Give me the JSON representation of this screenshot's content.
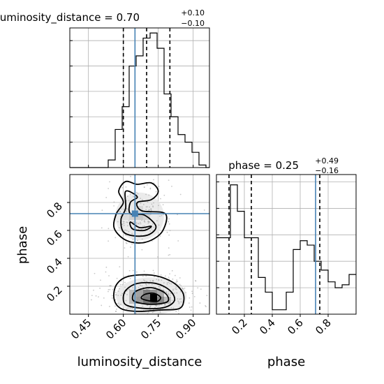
{
  "colors": {
    "hist": "#000000",
    "truth": "#4682b4",
    "grid": "#b0b0b0",
    "contour": "#000000",
    "points": "#9a9a9a"
  },
  "chart_data": [
    {
      "panel": "top-left",
      "type": "histogram",
      "title_base": "luminosity_distance = 0.70",
      "title_sup": "+0.10",
      "title_sub": "−0.10",
      "xlim": [
        0.37,
        0.97
      ],
      "x_ticks": [
        0.45,
        0.6,
        0.75,
        0.9
      ],
      "bin_edges": [
        0.37,
        0.385,
        0.4,
        0.415,
        0.43,
        0.445,
        0.46,
        0.475,
        0.49,
        0.505,
        0.52,
        0.535,
        0.55,
        0.565,
        0.58,
        0.595,
        0.61,
        0.625,
        0.64,
        0.655,
        0.67,
        0.685,
        0.7,
        0.715,
        0.73,
        0.745,
        0.76,
        0.775,
        0.79,
        0.805,
        0.82,
        0.835,
        0.85,
        0.865,
        0.88,
        0.895,
        0.91,
        0.925,
        0.94,
        0.955,
        0.97
      ],
      "counts": [
        0,
        0,
        0,
        0,
        0,
        0,
        0,
        0,
        0,
        0,
        0,
        3,
        3,
        15,
        15,
        24,
        24,
        40,
        40,
        44,
        44,
        51,
        51,
        53,
        53,
        47,
        47,
        29,
        29,
        20,
        20,
        13,
        13,
        10,
        10,
        6,
        6,
        1,
        1,
        0
      ],
      "quantiles": [
        0.6,
        0.7,
        0.8
      ],
      "truth": 0.65,
      "ylim": [
        0,
        55
      ]
    },
    {
      "panel": "bottom-left",
      "type": "scatter",
      "xlabel": "luminosity_distance",
      "ylabel": "phase",
      "xlim": [
        0.37,
        0.97
      ],
      "ylim": [
        0.0,
        1.0
      ],
      "x_ticks": [
        0.45,
        0.6,
        0.75,
        0.9
      ],
      "y_ticks": [
        0.2,
        0.4,
        0.6,
        0.8
      ],
      "truth": [
        0.65,
        0.72
      ],
      "peak": [
        0.73,
        0.12
      ],
      "modes": [
        {
          "cx": 0.67,
          "cy": 0.7,
          "sx": 0.055,
          "sy": 0.09,
          "n": 220
        },
        {
          "cx": 0.72,
          "cy": 0.13,
          "sx": 0.08,
          "sy": 0.07,
          "n": 380
        }
      ],
      "density_cells": [
        {
          "x": 0.67,
          "y": 0.1,
          "level": 0.55
        },
        {
          "x": 0.7,
          "y": 0.1,
          "level": 0.75
        },
        {
          "x": 0.73,
          "y": 0.1,
          "level": 0.85
        },
        {
          "x": 0.76,
          "y": 0.1,
          "level": 0.65
        },
        {
          "x": 0.67,
          "y": 0.15,
          "level": 0.5
        },
        {
          "x": 0.7,
          "y": 0.15,
          "level": 0.7
        },
        {
          "x": 0.73,
          "y": 0.15,
          "level": 0.6
        },
        {
          "x": 0.76,
          "y": 0.15,
          "level": 0.45
        },
        {
          "x": 0.64,
          "y": 0.15,
          "level": 0.35
        },
        {
          "x": 0.64,
          "y": 0.1,
          "level": 0.35
        },
        {
          "x": 0.79,
          "y": 0.1,
          "level": 0.35
        },
        {
          "x": 0.61,
          "y": 0.7,
          "level": 0.18
        },
        {
          "x": 0.64,
          "y": 0.7,
          "level": 0.25
        },
        {
          "x": 0.67,
          "y": 0.7,
          "level": 0.28
        },
        {
          "x": 0.7,
          "y": 0.7,
          "level": 0.22
        },
        {
          "x": 0.67,
          "y": 0.75,
          "level": 0.2
        }
      ],
      "contours": [
        [
          [
            0.61,
            0.95
          ],
          [
            0.66,
            0.93
          ],
          [
            0.72,
            0.94
          ],
          [
            0.75,
            0.88
          ],
          [
            0.72,
            0.82
          ],
          [
            0.66,
            0.8
          ],
          [
            0.68,
            0.74
          ],
          [
            0.78,
            0.72
          ],
          [
            0.77,
            0.6
          ],
          [
            0.72,
            0.53
          ],
          [
            0.66,
            0.51
          ],
          [
            0.6,
            0.54
          ],
          [
            0.56,
            0.62
          ],
          [
            0.57,
            0.72
          ],
          [
            0.6,
            0.8
          ],
          [
            0.58,
            0.88
          ]
        ],
        [
          [
            0.61,
            0.88
          ],
          [
            0.66,
            0.84
          ],
          [
            0.63,
            0.8
          ],
          [
            0.63,
            0.72
          ],
          [
            0.69,
            0.71
          ],
          [
            0.74,
            0.63
          ],
          [
            0.71,
            0.57
          ],
          [
            0.65,
            0.56
          ],
          [
            0.6,
            0.59
          ],
          [
            0.59,
            0.68
          ],
          [
            0.61,
            0.76
          ]
        ],
        [
          [
            0.63,
            0.66
          ],
          [
            0.67,
            0.62
          ],
          [
            0.72,
            0.63
          ],
          [
            0.69,
            0.6
          ],
          [
            0.64,
            0.61
          ]
        ],
        [
          [
            0.59,
            0.04
          ],
          [
            0.66,
            0.02
          ],
          [
            0.76,
            0.03
          ],
          [
            0.84,
            0.04
          ],
          [
            0.86,
            0.1
          ],
          [
            0.85,
            0.17
          ],
          [
            0.8,
            0.24
          ],
          [
            0.72,
            0.28
          ],
          [
            0.62,
            0.27
          ],
          [
            0.57,
            0.21
          ],
          [
            0.56,
            0.11
          ]
        ],
        [
          [
            0.62,
            0.06
          ],
          [
            0.7,
            0.04
          ],
          [
            0.78,
            0.05
          ],
          [
            0.82,
            0.1
          ],
          [
            0.8,
            0.17
          ],
          [
            0.74,
            0.22
          ],
          [
            0.66,
            0.22
          ],
          [
            0.61,
            0.17
          ],
          [
            0.6,
            0.1
          ]
        ],
        [
          [
            0.65,
            0.09
          ],
          [
            0.72,
            0.07
          ],
          [
            0.79,
            0.09
          ],
          [
            0.78,
            0.15
          ],
          [
            0.72,
            0.19
          ],
          [
            0.66,
            0.17
          ],
          [
            0.64,
            0.13
          ]
        ],
        [
          [
            0.68,
            0.11
          ],
          [
            0.74,
            0.09
          ],
          [
            0.76,
            0.12
          ],
          [
            0.73,
            0.15
          ],
          [
            0.69,
            0.14
          ]
        ]
      ]
    },
    {
      "panel": "bottom-right",
      "type": "histogram",
      "title_base": "phase = 0.25",
      "title_sup": "+0.49",
      "title_sub": "−0.16",
      "xlabel": "phase",
      "xlim": [
        0.0,
        1.0
      ],
      "x_ticks": [
        0.2,
        0.4,
        0.6,
        0.8
      ],
      "bin_edges": [
        0.0,
        0.05,
        0.1,
        0.15,
        0.2,
        0.25,
        0.3,
        0.35,
        0.4,
        0.45,
        0.5,
        0.55,
        0.6,
        0.65,
        0.7,
        0.75,
        0.8,
        0.85,
        0.9,
        0.95,
        1.0
      ],
      "counts": [
        52,
        52,
        88,
        70,
        52,
        52,
        25,
        15,
        3,
        3,
        15,
        44,
        50,
        47,
        36,
        30,
        22,
        18,
        20,
        27
      ],
      "quantiles": [
        0.09,
        0.25,
        0.74
      ],
      "truth": 0.71,
      "ylim": [
        0,
        95
      ]
    }
  ]
}
